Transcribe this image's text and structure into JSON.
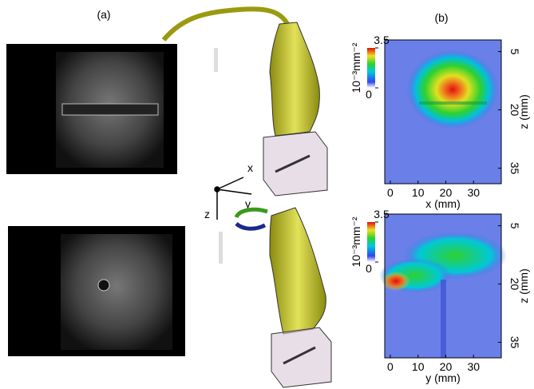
{
  "labels": {
    "a": "(a)",
    "b": "(b)"
  },
  "triad": {
    "x": "x",
    "y": "y",
    "z": "z"
  },
  "heatmaps": [
    {
      "xlabel": "x (mm)",
      "ylabel": "z (mm)",
      "xlim": [
        -2,
        40
      ],
      "ylim": [
        2,
        39
      ],
      "xticks": [
        0,
        10,
        20,
        30
      ],
      "yticks": [
        5,
        20,
        35
      ],
      "colorbar": {
        "label": "10⁻³mm⁻²",
        "lim": [
          0,
          3.5
        ],
        "ticks": [
          0,
          3.5
        ]
      }
    },
    {
      "xlabel": "y (mm)",
      "ylabel": "z (mm)",
      "xlim": [
        -2,
        40
      ],
      "ylim": [
        2,
        39
      ],
      "xticks": [
        0,
        10,
        20,
        30
      ],
      "yticks": [
        5,
        20,
        35
      ],
      "colorbar": {
        "label": "10⁻³mm⁻²",
        "lim": [
          0,
          3.5
        ],
        "ticks": [
          0,
          3.5
        ]
      }
    }
  ]
}
